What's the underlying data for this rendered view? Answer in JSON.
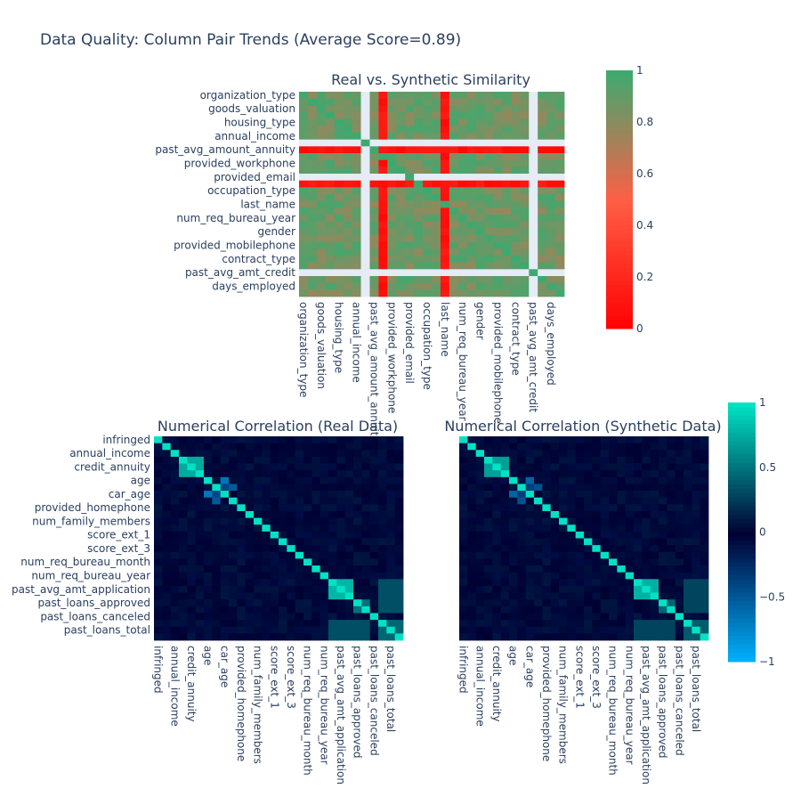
{
  "figure": {
    "title": "Data Quality: Column Pair Trends (Average Score=0.89)"
  },
  "colors": {
    "background": "#ffffff",
    "text": "#2a3f5f",
    "similarity_low": "#ff0000",
    "similarity_high": "#3ea96f",
    "similarity_missing": "#e5ecf6",
    "corr_neg": "#00b4ff",
    "corr_zero": "#000033",
    "corr_pos": "#00e3c3"
  },
  "chart_data": [
    {
      "type": "heatmap",
      "title": "Real vs. Synthetic Similarity",
      "zlim": [
        0,
        1
      ],
      "colorbar_ticks": [
        "0",
        "0.2",
        "0.4",
        "0.6",
        "0.8",
        "1"
      ],
      "y_tick_labels": [
        "organization_type",
        "goods_valuation",
        "housing_type",
        "annual_income",
        "past_avg_amount_annuity",
        "provided_workphone",
        "provided_email",
        "occupation_type",
        "last_name",
        "num_req_bureau_year",
        "gender",
        "provided_mobilephone",
        "contract_type",
        "past_avg_amt_credit",
        "days_employed"
      ],
      "x_tick_labels": [
        "organization_type",
        "goods_valuation",
        "housing_type",
        "annual_income",
        "past_avg_amount_annuity",
        "provided_workphone",
        "provided_email",
        "occupation_type",
        "last_name",
        "num_req_bureau_year",
        "gender",
        "provided_mobilephone",
        "contract_type",
        "past_avg_amt_credit",
        "days_employed"
      ],
      "grid_size": 30,
      "typical_score": 0.88,
      "missing_columns": [
        7,
        26
      ],
      "missing_rows": [
        7,
        12,
        26
      ],
      "low_score_columns": [
        9,
        16
      ],
      "low_score_rows": [
        8,
        13
      ],
      "legend": "none"
    },
    {
      "type": "heatmap",
      "title": "Numerical Correlation (Real Data)",
      "zlim": [
        -1,
        1
      ],
      "colorbar_ticks": [
        "1",
        "0.5",
        "0",
        "−0.5",
        "−1"
      ],
      "y_tick_labels": [
        "infringed",
        "annual_income",
        "credit_annuity",
        "age",
        "car_age",
        "provided_homephone",
        "num_family_members",
        "score_ext_1",
        "score_ext_3",
        "num_req_bureau_month",
        "num_req_bureau_year",
        "past_avg_amt_application",
        "past_loans_approved",
        "past_loans_canceled",
        "past_loans_total"
      ],
      "x_tick_labels": [
        "infringed",
        "annual_income",
        "credit_annuity",
        "age",
        "car_age",
        "provided_homephone",
        "num_family_members",
        "score_ext_1",
        "score_ext_3",
        "num_req_bureau_month",
        "num_req_bureau_year",
        "past_avg_amt_application",
        "past_loans_approved",
        "past_loans_canceled",
        "past_loans_total"
      ],
      "grid_size": 30,
      "strong_blocks": [
        {
          "rows": [
            3,
            5
          ],
          "cols": [
            3,
            5
          ],
          "value": 0.75
        },
        {
          "rows": [
            21,
            23
          ],
          "cols": [
            21,
            23
          ],
          "value": 0.8
        },
        {
          "rows": [
            24,
            25
          ],
          "cols": [
            24,
            25
          ],
          "value": 0.5
        },
        {
          "rows": [
            27,
            29
          ],
          "cols": [
            27,
            29
          ],
          "value": 0.45
        },
        {
          "rows": [
            21,
            25
          ],
          "cols": [
            27,
            29
          ],
          "value": 0.35
        }
      ],
      "negative_cells": [
        {
          "row": 8,
          "col": 6,
          "value": -0.65
        },
        {
          "row": 8,
          "col": 7,
          "value": -0.4
        },
        {
          "row": 7,
          "col": 9,
          "value": -0.5
        }
      ]
    },
    {
      "type": "heatmap",
      "title": "Numerical Correlation (Synthetic Data)",
      "zlim": [
        -1,
        1
      ],
      "y_tick_labels": [],
      "x_tick_labels": [
        "infringed",
        "annual_income",
        "credit_annuity",
        "age",
        "car_age",
        "provided_homephone",
        "num_family_members",
        "score_ext_1",
        "score_ext_3",
        "num_req_bureau_month",
        "num_req_bureau_year",
        "past_avg_amt_application",
        "past_loans_approved",
        "past_loans_canceled",
        "past_loans_total"
      ],
      "grid_size": 30,
      "strong_blocks": [
        {
          "rows": [
            3,
            5
          ],
          "cols": [
            3,
            5
          ],
          "value": 0.7
        },
        {
          "rows": [
            21,
            23
          ],
          "cols": [
            21,
            23
          ],
          "value": 0.78
        },
        {
          "rows": [
            24,
            25
          ],
          "cols": [
            24,
            25
          ],
          "value": 0.45
        },
        {
          "rows": [
            27,
            29
          ],
          "cols": [
            27,
            29
          ],
          "value": 0.4
        },
        {
          "rows": [
            21,
            25
          ],
          "cols": [
            27,
            29
          ],
          "value": 0.3
        }
      ],
      "negative_cells": [
        {
          "row": 8,
          "col": 6,
          "value": -0.55
        },
        {
          "row": 8,
          "col": 7,
          "value": -0.35
        },
        {
          "row": 7,
          "col": 9,
          "value": -0.45
        }
      ]
    }
  ]
}
